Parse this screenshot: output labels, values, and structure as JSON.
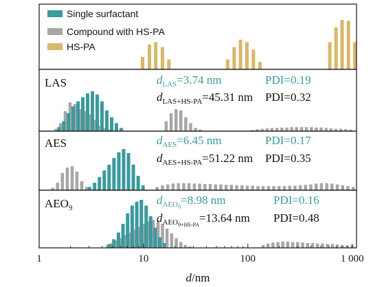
{
  "chart_data": {
    "type": "bar",
    "xlabel": "d/nm",
    "xscale": "log",
    "xlim": [
      1,
      1100
    ],
    "x_ticks": [
      {
        "value": 1,
        "label": "1"
      },
      {
        "value": 10,
        "label": "10"
      },
      {
        "value": 100,
        "label": "100"
      },
      {
        "value": 1000,
        "label": "1 000"
      }
    ],
    "colors": {
      "single": "#3a9a9c",
      "compound": "#a6a6a6",
      "hspa": "#d8b768",
      "text_teal": "#3a9a9c",
      "text_black": "#111111"
    },
    "legend": {
      "position": "top-left",
      "entries": [
        {
          "key": "single",
          "label": "Single surfactant"
        },
        {
          "key": "compound",
          "label": "Compound with HS-PA"
        },
        {
          "key": "hspa",
          "label": "HS-PA"
        }
      ]
    },
    "panels": [
      {
        "name": "",
        "series": [
          {
            "key": "hspa",
            "x": [
              9.8,
              11.4,
              13.1,
              15.2,
              17.5
            ],
            "y": [
              0.25,
              0.5,
              0.55,
              0.45,
              0.2
            ]
          },
          {
            "key": "hspa",
            "x": [
              64,
              74,
              85,
              98,
              113,
              131
            ],
            "y": [
              0.2,
              0.45,
              0.6,
              0.55,
              0.4,
              0.15
            ]
          },
          {
            "key": "hspa",
            "x": [
              610,
              700,
              800,
              920,
              1060
            ],
            "y": [
              0.55,
              0.85,
              1.0,
              0.98,
              0.55
            ]
          }
        ]
      },
      {
        "name": "LAS",
        "ann1": {
          "base": "d",
          "sub": "LAS",
          "value": "=3.74 nm",
          "pdi": "PDI=0.19"
        },
        "ann2": {
          "base": "d",
          "sub": "LAS+HS-PA",
          "value": "=45.31 nm",
          "pdi": "PDI=0.32"
        },
        "series": [
          {
            "key": "compound",
            "x": [
              1.45,
              1.6,
              1.78,
              1.98,
              2.2,
              2.45,
              2.72,
              3.03,
              3.37,
              3.75,
              4.17,
              4.64
            ],
            "y": [
              0.06,
              0.2,
              0.5,
              0.72,
              0.68,
              0.55,
              0.5,
              0.42,
              0.28,
              0.14,
              0.08,
              0.04
            ]
          },
          {
            "key": "single",
            "x": [
              1.55,
              1.72,
              1.91,
              2.12,
              2.36,
              2.62,
              2.91,
              3.24,
              3.6,
              4.0,
              4.45,
              4.95,
              5.5,
              6.12
            ],
            "y": [
              0.1,
              0.25,
              0.45,
              0.62,
              0.75,
              0.85,
              0.95,
              1.0,
              0.92,
              0.75,
              0.52,
              0.35,
              0.2,
              0.08
            ]
          },
          {
            "key": "compound",
            "x": [
              16.5,
              18.4,
              20.5,
              22.8,
              25.4,
              28.3,
              31.5,
              35.0
            ],
            "y": [
              0.25,
              0.45,
              0.55,
              0.52,
              0.35,
              0.2,
              0.08,
              0.04
            ]
          },
          {
            "key": "compound",
            "x": [
              110,
              123,
              137,
              153,
              170,
              190,
              212,
              236,
              263,
              293,
              327,
              364,
              406,
              452,
              504,
              562,
              626,
              698,
              778,
              867,
              966
            ],
            "y": [
              0.03,
              0.05,
              0.06,
              0.07,
              0.08,
              0.08,
              0.09,
              0.09,
              0.1,
              0.1,
              0.1,
              0.1,
              0.1,
              0.09,
              0.09,
              0.08,
              0.07,
              0.06,
              0.06,
              0.05,
              0.04
            ]
          }
        ]
      },
      {
        "name": "AES",
        "ann1": {
          "base": "d",
          "sub": "AES",
          "value": "=6.45 nm",
          "pdi": "PDI=0.17"
        },
        "ann2": {
          "base": "d",
          "sub": "AES+HS-PA",
          "value": "=51.22 nm",
          "pdi": "PDI=0.35"
        },
        "series": [
          {
            "key": "compound",
            "x": [
              1.35,
              1.5,
              1.67,
              1.86,
              2.07,
              2.3,
              2.56,
              2.85
            ],
            "y": [
              0.06,
              0.18,
              0.42,
              0.55,
              0.58,
              0.45,
              0.22,
              0.08
            ]
          },
          {
            "key": "single",
            "x": [
              3.05,
              3.4,
              3.78,
              4.21,
              4.68,
              5.21,
              5.8,
              6.45,
              7.18,
              7.99,
              8.89,
              9.89
            ],
            "y": [
              0.08,
              0.18,
              0.32,
              0.48,
              0.62,
              0.78,
              0.92,
              1.0,
              0.9,
              0.62,
              0.35,
              0.12
            ]
          },
          {
            "key": "compound",
            "x": [
              13.5,
              15.2,
              17.1,
              19.2,
              21.6,
              24.3,
              27.3,
              30.7,
              34.5,
              38.8,
              43.6,
              49.0,
              55.1,
              61.9,
              69.6,
              78.2,
              87.9,
              98.8,
              111,
              125,
              140,
              158,
              177,
              199,
              224,
              252,
              283,
              318,
              357,
              401,
              451,
              507,
              570,
              640,
              720,
              809,
              909,
              1022
            ],
            "y": [
              0.08,
              0.12,
              0.14,
              0.16,
              0.17,
              0.17,
              0.17,
              0.16,
              0.16,
              0.15,
              0.15,
              0.14,
              0.14,
              0.13,
              0.13,
              0.12,
              0.12,
              0.11,
              0.11,
              0.1,
              0.1,
              0.1,
              0.1,
              0.1,
              0.1,
              0.11,
              0.11,
              0.12,
              0.13,
              0.14,
              0.16,
              0.17,
              0.17,
              0.16,
              0.14,
              0.12,
              0.1,
              0.08
            ]
          }
        ]
      },
      {
        "name": "AEO9",
        "name_base": "AEO",
        "name_sub": "9",
        "ann1": {
          "base": "d",
          "sub": "AEO",
          "sub2": "9",
          "value": "=8.98 nm",
          "pdi": "PDI=0.16"
        },
        "ann2": {
          "base": "d",
          "sub": "AEO",
          "sub2": "9+HS-PA",
          "value": "=13.64 nm",
          "pdi": "PDI=0.48"
        },
        "series": [
          {
            "key": "compound",
            "x": [
              4.52,
              5.0,
              5.54,
              6.13,
              6.78,
              7.5,
              8.3,
              9.18,
              10.2,
              11.2,
              12.4,
              13.8,
              15.2,
              16.8,
              18.6,
              20.6,
              22.8,
              25.2,
              27.9
            ],
            "y": [
              0.06,
              0.1,
              0.15,
              0.2,
              0.26,
              0.32,
              0.38,
              0.44,
              0.5,
              0.55,
              0.58,
              0.56,
              0.5,
              0.4,
              0.3,
              0.2,
              0.12,
              0.06,
              0.03
            ]
          },
          {
            "key": "single",
            "x": [
              4.7,
              5.2,
              5.75,
              6.36,
              7.04,
              7.79,
              8.62,
              9.54,
              10.6,
              11.7,
              12.9,
              14.3,
              15.8
            ],
            "y": [
              0.08,
              0.18,
              0.32,
              0.5,
              0.72,
              0.88,
              0.96,
              1.0,
              0.88,
              0.66,
              0.42,
              0.22,
              0.1
            ]
          },
          {
            "key": "compound",
            "x": [
              140,
              156,
              174,
              194,
              216,
              241,
              269,
              300,
              335,
              374,
              417,
              465,
              519,
              579,
              646,
              721,
              804,
              897,
              1001
            ],
            "y": [
              0.06,
              0.09,
              0.11,
              0.12,
              0.13,
              0.13,
              0.12,
              0.12,
              0.11,
              0.1,
              0.1,
              0.09,
              0.09,
              0.08,
              0.08,
              0.07,
              0.06,
              0.05,
              0.05
            ]
          }
        ]
      }
    ]
  }
}
